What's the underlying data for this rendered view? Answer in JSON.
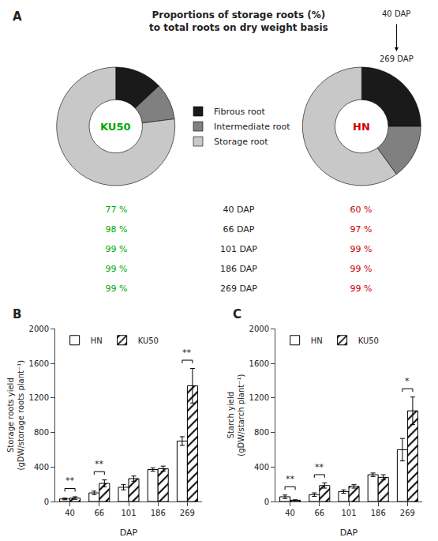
{
  "chart_data": [
    {
      "type": "pie",
      "title": "Proportions of storage roots (%)\nto total roots on dry weight basis",
      "annotations": [
        "A"
      ],
      "categories": [
        "Fibrous root",
        "Intermediate root",
        "Storage root"
      ],
      "colors": [
        "#1a1a1a",
        "#808080",
        "#c8c8c8"
      ],
      "series": [
        {
          "name": "KU50",
          "color": "#00aa00",
          "values": [
            13,
            10,
            77
          ]
        },
        {
          "name": "HN",
          "color": "#cc0000",
          "values": [
            25,
            15,
            60
          ]
        }
      ],
      "data_labels": false,
      "legend": "center"
    },
    {
      "type": "text",
      "annotations": [
        "40 DAP",
        "269 DAP"
      ],
      "categories": [
        "40 DAP",
        "66 DAP",
        "101 DAP",
        "186 DAP",
        "269 DAP"
      ],
      "series": [
        {
          "name": "KU50",
          "color": "#00aa00",
          "values": [
            77,
            98,
            99,
            99,
            99
          ],
          "value_labels": [
            "77 %",
            "98 %",
            "99 %",
            "99 %",
            "99 %"
          ]
        },
        {
          "name": "HN",
          "color": "#cc0000",
          "values": [
            60,
            97,
            99,
            99,
            99
          ],
          "value_labels": [
            "60 %",
            "97 %",
            "99 %",
            "99 %",
            "99 %"
          ]
        }
      ],
      "data_labels": true,
      "tick_labels": false,
      "legend": false
    },
    {
      "type": "bar",
      "annotations": [
        "B"
      ],
      "xlabel": "DAP",
      "ylabel": "Storage roots yield\n(gDW/storage roots plant⁻¹)",
      "categories": [
        "40",
        "66",
        "101",
        "186",
        "269"
      ],
      "series": [
        {
          "name": "HN",
          "color": "#ffffff",
          "marker": "solid",
          "values": [
            30,
            100,
            165,
            370,
            700
          ],
          "errors": [
            10,
            20,
            30,
            20,
            50
          ]
        },
        {
          "name": "KU50",
          "color": "#ffffff",
          "marker": "hatch",
          "values": [
            40,
            210,
            265,
            380,
            1340
          ],
          "errors": [
            15,
            40,
            30,
            30,
            200
          ]
        }
      ],
      "significance": [
        "**",
        "**",
        null,
        null,
        "**"
      ],
      "ylim": [
        0,
        2000
      ],
      "yticks": [
        0,
        400,
        800,
        1200,
        1600,
        2000
      ],
      "grid": false,
      "legend": "upper left"
    },
    {
      "type": "bar",
      "annotations": [
        "C"
      ],
      "xlabel": "DAP",
      "ylabel": "Starch yield\n(gDW/starch plant⁻¹)",
      "categories": [
        "40",
        "66",
        "101",
        "186",
        "269"
      ],
      "series": [
        {
          "name": "HN",
          "color": "#ffffff",
          "marker": "solid",
          "values": [
            55,
            80,
            115,
            310,
            600
          ],
          "errors": [
            20,
            20,
            20,
            20,
            130
          ]
        },
        {
          "name": "KU50",
          "color": "#ffffff",
          "marker": "hatch",
          "values": [
            15,
            185,
            175,
            280,
            1050
          ],
          "errors": [
            5,
            30,
            20,
            30,
            160
          ]
        }
      ],
      "significance": [
        "**",
        "**",
        null,
        null,
        "*"
      ],
      "ylim": [
        0,
        2000
      ],
      "yticks": [
        0,
        400,
        800,
        1200,
        1600,
        2000
      ],
      "grid": false,
      "legend": "upper left"
    }
  ]
}
